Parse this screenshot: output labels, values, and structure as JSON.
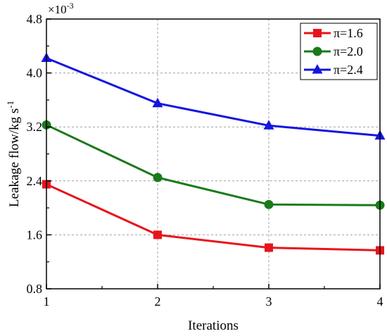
{
  "chart_data": {
    "type": "line",
    "xlabel": "Iterations",
    "ylabel": "Leakage flow/kg s",
    "ylabel_superscript": "-1",
    "y_multiplier": {
      "base": "×10",
      "exponent": "-3"
    },
    "x": [
      1,
      2,
      3,
      4
    ],
    "xlim": [
      1,
      4
    ],
    "ylim": [
      0.8,
      4.8
    ],
    "xticks": [
      1,
      2,
      3,
      4
    ],
    "xtick_labels": [
      "1",
      "2",
      "3",
      "4"
    ],
    "yticks": [
      0.8,
      1.6,
      2.4,
      3.2,
      4.0,
      4.8
    ],
    "ytick_labels": [
      "0.8",
      "1.6",
      "2.4",
      "3.2",
      "4.0",
      "4.8"
    ],
    "grid": true,
    "legend_position": "top-right",
    "series": [
      {
        "name": "π=1.6",
        "values": [
          2.35,
          1.6,
          1.41,
          1.37
        ],
        "color": "#e8141c",
        "marker": "square"
      },
      {
        "name": "π=2.0",
        "values": [
          3.23,
          2.45,
          2.05,
          2.04
        ],
        "color": "#1a7a1a",
        "marker": "circle"
      },
      {
        "name": "π=2.4",
        "values": [
          4.22,
          3.55,
          3.22,
          3.07
        ],
        "color": "#1515e0",
        "marker": "triangle"
      }
    ]
  }
}
